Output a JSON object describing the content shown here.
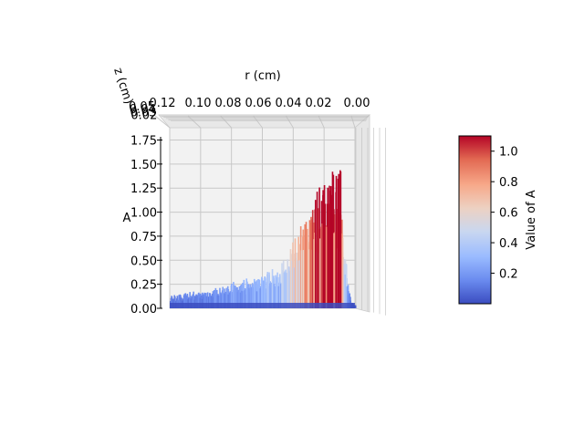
{
  "chart_data": {
    "type": "bar3d",
    "view": "3D surface viewed from above, r axis reversed along the top",
    "xlabel": "r (cm)",
    "ylabel": "z (cm)",
    "zlabel": "A",
    "x_ticks": [
      "0.12",
      "0.10",
      "0.08",
      "0.06",
      "0.04",
      "0.02",
      "0.00"
    ],
    "z_ticks": [
      "0.00",
      "0.25",
      "0.50",
      "0.75",
      "1.00",
      "1.25",
      "1.50",
      "1.75"
    ],
    "y_ticks_overlapping": [
      "0.05",
      "0.04",
      "0.03",
      "0.02"
    ],
    "xlim": [
      0.0,
      0.12
    ],
    "zlim": [
      0.0,
      1.8
    ],
    "profile": {
      "r": [
        0.12,
        0.11,
        0.1,
        0.09,
        0.08,
        0.07,
        0.06,
        0.05,
        0.045,
        0.04,
        0.035,
        0.03,
        0.025,
        0.02,
        0.015,
        0.01,
        0.006,
        0.003,
        0.0
      ],
      "A": [
        0.12,
        0.15,
        0.17,
        0.2,
        0.25,
        0.3,
        0.33,
        0.4,
        0.55,
        0.65,
        0.8,
        0.95,
        1.15,
        1.25,
        1.35,
        1.2,
        0.45,
        0.08,
        0.02
      ],
      "peak": 1.55
    },
    "colorbar": {
      "label": "Value of A",
      "ticks": [
        "0.2",
        "0.4",
        "0.6",
        "0.8",
        "1.0"
      ],
      "tick_values": [
        0.2,
        0.4,
        0.6,
        0.8,
        1.0
      ],
      "range": [
        0.0,
        1.1
      ],
      "colormap": "coolwarm",
      "colors": [
        "#3b4cc0",
        "#6a8bef",
        "#9abbff",
        "#c9d7f0",
        "#edd1c2",
        "#f7a889",
        "#e26952",
        "#b40426"
      ]
    },
    "grid": true
  }
}
